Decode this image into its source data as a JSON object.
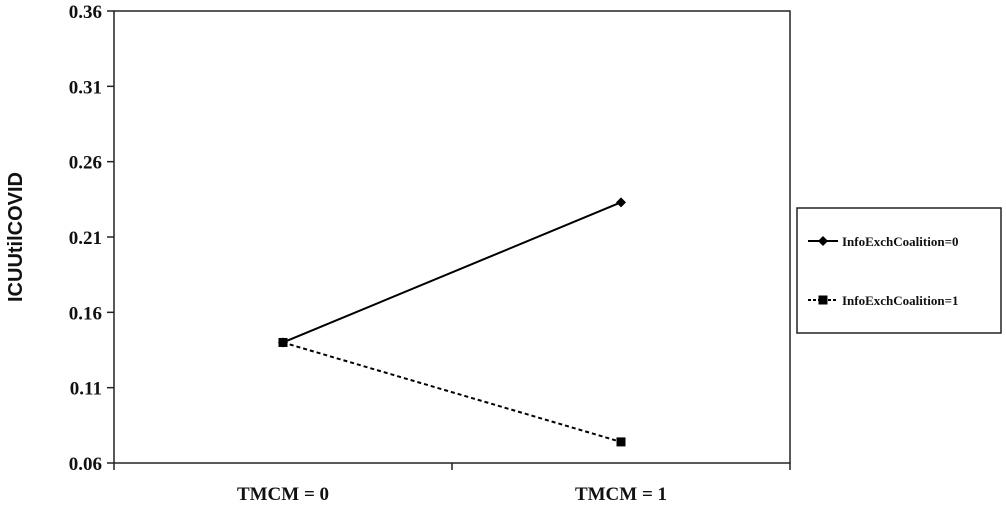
{
  "chart_data": {
    "type": "line",
    "title": "",
    "xlabel": "",
    "ylabel": "ICUUtilCOVID",
    "categories": [
      "TMCM = 0",
      "TMCM = 1"
    ],
    "ylim": [
      0.06,
      0.36
    ],
    "yticks": [
      "0.36",
      "0.31",
      "0.26",
      "0.21",
      "0.16",
      "0.11",
      "0.06"
    ],
    "grid": false,
    "legend_position": "right",
    "series": [
      {
        "name": "InfoExchCoalition=0",
        "values": [
          0.14,
          0.233
        ],
        "marker": "diamond",
        "line": "solid",
        "color": "#000000"
      },
      {
        "name": "InfoExchCoalition=1",
        "values": [
          0.14,
          0.074
        ],
        "marker": "square",
        "line": "dashed",
        "color": "#000000"
      }
    ]
  }
}
